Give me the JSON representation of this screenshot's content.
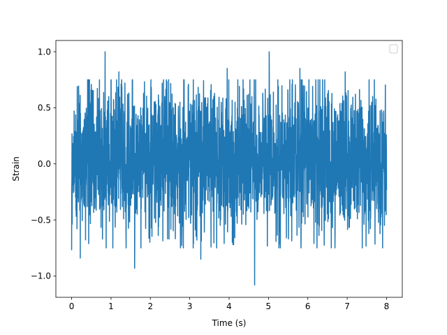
{
  "chart_data": {
    "type": "line",
    "title": "",
    "xlabel": "Time (s)",
    "ylabel": "Strain",
    "xlim": [
      -0.4,
      8.4
    ],
    "ylim": [
      -1.19,
      1.1
    ],
    "xticks": [
      0,
      1,
      2,
      3,
      4,
      5,
      6,
      7,
      8
    ],
    "xtick_labels": [
      "0",
      "1",
      "2",
      "3",
      "4",
      "5",
      "6",
      "7",
      "8"
    ],
    "yticks": [
      -1.0,
      -0.5,
      0.0,
      0.5,
      1.0
    ],
    "ytick_labels": [
      "−1.0",
      "−0.5",
      "0.0",
      "0.5",
      "1.0"
    ],
    "grid": false,
    "legend": {
      "placement": "top-right",
      "entries": []
    },
    "series": [
      {
        "color": "#1f77b4",
        "x_start": 0,
        "x_end": 8,
        "sample_count": 2400,
        "typical_range": [
          -0.6,
          0.7
        ],
        "peaks": [
          {
            "x": 0.85,
            "y": 1.0
          },
          {
            "x": 5.02,
            "y": 1.0
          },
          {
            "x": 1.2,
            "y": 0.82
          },
          {
            "x": 4.65,
            "y": -1.08
          },
          {
            "x": 1.6,
            "y": -0.93
          },
          {
            "x": 0.0,
            "y": -0.77
          },
          {
            "x": 0.22,
            "y": -0.84
          },
          {
            "x": 5.8,
            "y": 0.85
          },
          {
            "x": 6.95,
            "y": 0.82
          },
          {
            "x": 3.95,
            "y": 0.85
          },
          {
            "x": 3.28,
            "y": -0.85
          },
          {
            "x": 7.9,
            "y": -0.75
          }
        ]
      }
    ]
  }
}
